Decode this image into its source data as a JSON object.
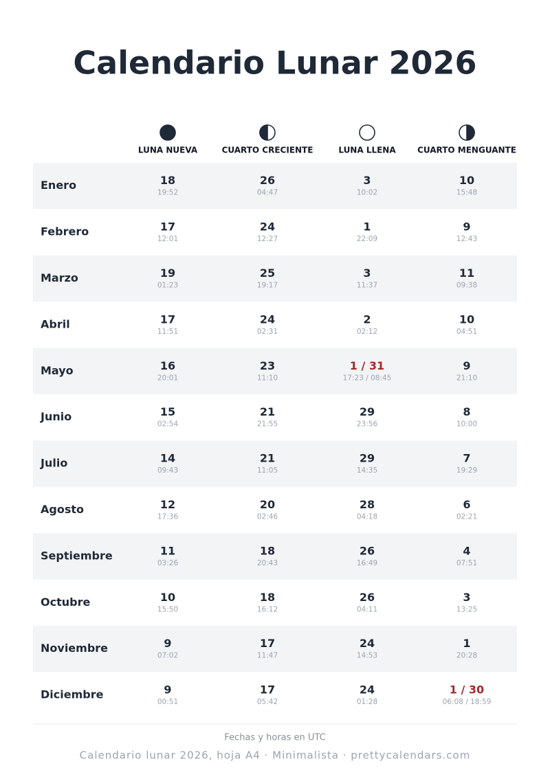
{
  "header": {
    "title": "Calendario Lunar 2026"
  },
  "table": {
    "columns": [
      "LUNA NUEVA",
      "CUARTO CRECIENTE",
      "LUNA LLENA",
      "CUARTO MENGUANTE"
    ],
    "rows": [
      {
        "month": "Enero",
        "cells": [
          {
            "day": "18",
            "time": "19:52"
          },
          {
            "day": "26",
            "time": "04:47"
          },
          {
            "day": "3",
            "time": "10:02"
          },
          {
            "day": "10",
            "time": "15:48"
          }
        ]
      },
      {
        "month": "Febrero",
        "cells": [
          {
            "day": "17",
            "time": "12:01"
          },
          {
            "day": "24",
            "time": "12:27"
          },
          {
            "day": "1",
            "time": "22:09"
          },
          {
            "day": "9",
            "time": "12:43"
          }
        ]
      },
      {
        "month": "Marzo",
        "cells": [
          {
            "day": "19",
            "time": "01:23"
          },
          {
            "day": "25",
            "time": "19:17"
          },
          {
            "day": "3",
            "time": "11:37"
          },
          {
            "day": "11",
            "time": "09:38"
          }
        ]
      },
      {
        "month": "Abril",
        "cells": [
          {
            "day": "17",
            "time": "11:51"
          },
          {
            "day": "24",
            "time": "02:31"
          },
          {
            "day": "2",
            "time": "02:12"
          },
          {
            "day": "10",
            "time": "04:51"
          }
        ]
      },
      {
        "month": "Mayo",
        "cells": [
          {
            "day": "16",
            "time": "20:01"
          },
          {
            "day": "23",
            "time": "11:10"
          },
          {
            "day": "1 / 31",
            "time": "17:23 / 08:45"
          },
          {
            "day": "9",
            "time": "21:10"
          }
        ]
      },
      {
        "month": "Junio",
        "cells": [
          {
            "day": "15",
            "time": "02:54"
          },
          {
            "day": "21",
            "time": "21:55"
          },
          {
            "day": "29",
            "time": "23:56"
          },
          {
            "day": "8",
            "time": "10:00"
          }
        ]
      },
      {
        "month": "Julio",
        "cells": [
          {
            "day": "14",
            "time": "09:43"
          },
          {
            "day": "21",
            "time": "11:05"
          },
          {
            "day": "29",
            "time": "14:35"
          },
          {
            "day": "7",
            "time": "19:29"
          }
        ]
      },
      {
        "month": "Agosto",
        "cells": [
          {
            "day": "12",
            "time": "17:36"
          },
          {
            "day": "20",
            "time": "02:46"
          },
          {
            "day": "28",
            "time": "04:18"
          },
          {
            "day": "6",
            "time": "02:21"
          }
        ]
      },
      {
        "month": "Septiembre",
        "cells": [
          {
            "day": "11",
            "time": "03:26"
          },
          {
            "day": "18",
            "time": "20:43"
          },
          {
            "day": "26",
            "time": "16:49"
          },
          {
            "day": "4",
            "time": "07:51"
          }
        ]
      },
      {
        "month": "Octubre",
        "cells": [
          {
            "day": "10",
            "time": "15:50"
          },
          {
            "day": "18",
            "time": "16:12"
          },
          {
            "day": "26",
            "time": "04:11"
          },
          {
            "day": "3",
            "time": "13:25"
          }
        ]
      },
      {
        "month": "Noviembre",
        "cells": [
          {
            "day": "9",
            "time": "07:02"
          },
          {
            "day": "17",
            "time": "11:47"
          },
          {
            "day": "24",
            "time": "14:53"
          },
          {
            "day": "1",
            "time": "20:28"
          }
        ]
      },
      {
        "month": "Diciembre",
        "cells": [
          {
            "day": "9",
            "time": "00:51"
          },
          {
            "day": "17",
            "time": "05:42"
          },
          {
            "day": "24",
            "time": "01:28"
          },
          {
            "day": "1 / 30",
            "time": "06:08 / 18:59"
          }
        ]
      }
    ]
  },
  "footer": {
    "note": "Fechas y horas en UTC",
    "credit": "Calendario lunar 2026, hoja A4 · Minimalista · prettycalendars.com"
  }
}
